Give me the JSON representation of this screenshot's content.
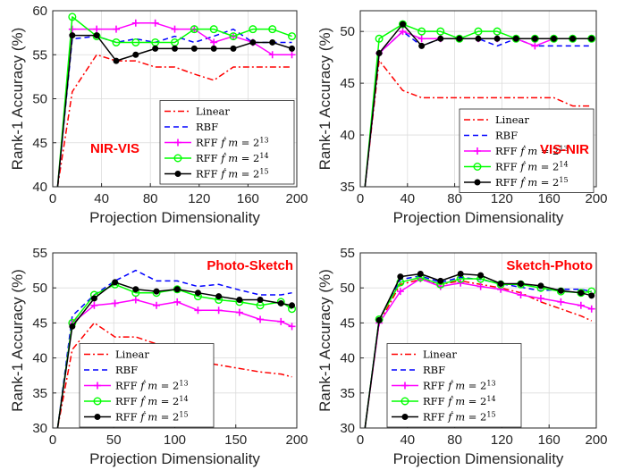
{
  "colors": {
    "title_red": "#ff0000"
  },
  "chart_data": [
    {
      "type": "line",
      "title": "NIR-VIS",
      "xlabel": "Projection Dimensionality",
      "ylabel": "Rank-1 Accuracy (%)",
      "xlim": [
        0,
        200
      ],
      "ylim": [
        40,
        60
      ],
      "xticks": [
        0,
        40,
        80,
        120,
        160,
        200
      ],
      "yticks": [
        40,
        45,
        50,
        55,
        60
      ],
      "grid": true,
      "legend_position": "bottom-right",
      "title_position": "bottom-left",
      "x": [
        4,
        16,
        36,
        52,
        68,
        84,
        100,
        116,
        132,
        148,
        164,
        180,
        196
      ],
      "series": [
        {
          "name": "Linear",
          "color": "#ff0000",
          "dash": "dashdot",
          "marker": "none",
          "values": [
            40,
            50.8,
            55,
            54.3,
            54.3,
            53.6,
            53.6,
            52.8,
            52.1,
            53.6,
            53.6,
            53.6,
            53.6
          ]
        },
        {
          "name": "RBF",
          "color": "#0000ff",
          "dash": "dash",
          "marker": "none",
          "values": [
            40,
            56.8,
            57.1,
            56.4,
            56.8,
            56.4,
            57.1,
            56.4,
            57.1,
            57.9,
            56.4,
            56.4,
            56.4
          ]
        },
        {
          "name": "RFF $\\dot{f}$ $m = 2^{13}$",
          "color": "#ff00ff",
          "dash": "solid",
          "marker": "plus",
          "values": [
            40,
            57.9,
            57.9,
            57.9,
            58.6,
            58.6,
            57.9,
            57.9,
            56.4,
            57.1,
            56.4,
            55,
            55
          ]
        },
        {
          "name": "RFF $\\dot{f}$ $m = 2^{14}$",
          "color": "#00ff00",
          "dash": "solid",
          "marker": "circle",
          "values": [
            40,
            59.3,
            57.1,
            56.4,
            56.4,
            56.4,
            56.4,
            57.9,
            57.9,
            57.1,
            57.9,
            57.9,
            57.1
          ]
        },
        {
          "name": "RFF $\\dot{f}$ $m = 2^{15}$",
          "color": "#000000",
          "dash": "solid",
          "marker": "dot",
          "values": [
            40,
            57.2,
            57.2,
            54.3,
            55,
            55.7,
            55.7,
            55.7,
            55.7,
            55.7,
            56.4,
            56.4,
            55.7
          ]
        }
      ]
    },
    {
      "type": "line",
      "title": "VIS-NIR",
      "xlabel": "Projection Dimensionality",
      "ylabel": "Rank-1 Accuracy (%)",
      "xlim": [
        0,
        200
      ],
      "ylim": [
        35,
        52
      ],
      "xticks": [
        0,
        40,
        80,
        120,
        160,
        200
      ],
      "yticks": [
        35,
        40,
        45,
        50
      ],
      "grid": true,
      "legend_position": "top-right",
      "title_position": "bottom-right",
      "x": [
        4,
        16,
        36,
        52,
        68,
        84,
        100,
        116,
        132,
        148,
        164,
        180,
        196
      ],
      "series": [
        {
          "name": "Linear",
          "color": "#ff0000",
          "dash": "dashdot",
          "marker": "none",
          "values": [
            35,
            47.2,
            44.3,
            43.6,
            43.6,
            43.6,
            43.6,
            43.6,
            43.6,
            43.6,
            43.6,
            42.8,
            42.8
          ]
        },
        {
          "name": "RBF",
          "color": "#0000ff",
          "dash": "dash",
          "marker": "none",
          "values": [
            35,
            47.9,
            50,
            48.6,
            49.3,
            49.3,
            49.3,
            48.6,
            49.3,
            48.6,
            48.6,
            48.6,
            48.6
          ]
        },
        {
          "name": "RFF $\\dot{f}$ $m = 2^{13}$",
          "color": "#ff00ff",
          "dash": "solid",
          "marker": "plus",
          "values": [
            35,
            47.9,
            50,
            49.3,
            49.3,
            49.3,
            49.3,
            49.3,
            49.3,
            48.6,
            49.3,
            49.3,
            49.3
          ]
        },
        {
          "name": "RFF $\\dot{f}$ $m = 2^{14}$",
          "color": "#00ff00",
          "dash": "solid",
          "marker": "circle",
          "values": [
            35,
            49.3,
            50.7,
            50,
            50,
            49.3,
            50,
            50,
            49.3,
            49.3,
            49.3,
            49.3,
            49.3
          ]
        },
        {
          "name": "RFF $\\dot{f}$ $m = 2^{15}$",
          "color": "#000000",
          "dash": "solid",
          "marker": "dot",
          "values": [
            35,
            47.9,
            50.7,
            48.6,
            49.3,
            49.3,
            49.3,
            49.3,
            49.3,
            49.3,
            49.3,
            49.3,
            49.3
          ]
        }
      ]
    },
    {
      "type": "line",
      "title": "Photo-Sketch",
      "xlabel": "Projection Dimensionality",
      "ylabel": "Rank-1 Accuracy (%)",
      "xlim": [
        0,
        200
      ],
      "ylim": [
        30,
        55
      ],
      "xticks": [
        0,
        50,
        100,
        150,
        200
      ],
      "yticks": [
        30,
        35,
        40,
        45,
        50,
        55
      ],
      "grid": true,
      "legend_position": "bottom-left",
      "title_position": "top-right",
      "x": [
        4,
        16,
        34,
        51,
        68,
        85,
        102,
        119,
        136,
        153,
        170,
        187,
        196
      ],
      "series": [
        {
          "name": "Linear",
          "color": "#ff0000",
          "dash": "dashdot",
          "marker": "none",
          "values": [
            30,
            41.2,
            45,
            43,
            43,
            42,
            40.5,
            39.5,
            39,
            38.5,
            38,
            37.7,
            37.3
          ]
        },
        {
          "name": "RBF",
          "color": "#0000ff",
          "dash": "dash",
          "marker": "none",
          "values": [
            30,
            46,
            49,
            51,
            52.5,
            51,
            51,
            50.2,
            50.5,
            49.7,
            49,
            49,
            49.3
          ]
        },
        {
          "name": "RFF $\\dot{f}$ $m = 2^{13}$",
          "color": "#ff00ff",
          "dash": "solid",
          "marker": "plus",
          "values": [
            30,
            45,
            47.5,
            47.8,
            48.3,
            47.5,
            48,
            46.8,
            46.8,
            46.5,
            45.5,
            45.2,
            44.5
          ]
        },
        {
          "name": "RFF $\\dot{f}$ $m = 2^{14}$",
          "color": "#00ff00",
          "dash": "solid",
          "marker": "circle",
          "values": [
            30,
            45,
            49,
            50.5,
            49.3,
            49.3,
            49.8,
            48.8,
            48.3,
            48,
            47.5,
            48,
            47
          ]
        },
        {
          "name": "RFF $\\dot{f}$ $m = 2^{15}$",
          "color": "#000000",
          "dash": "solid",
          "marker": "dot",
          "values": [
            30,
            44.5,
            48.5,
            50.8,
            49.8,
            49.5,
            49.8,
            49.3,
            48.8,
            48.3,
            48.3,
            47.8,
            47.5
          ]
        }
      ]
    },
    {
      "type": "line",
      "title": "Sketch-Photo",
      "xlabel": "Projection Dimensionality",
      "ylabel": "Rank-1 Accuracy (%)",
      "xlim": [
        0,
        200
      ],
      "ylim": [
        30,
        55
      ],
      "xticks": [
        0,
        40,
        80,
        120,
        160,
        200
      ],
      "yticks": [
        30,
        35,
        40,
        45,
        50,
        55
      ],
      "grid": true,
      "legend_position": "bottom-left",
      "title_position": "top-right",
      "x": [
        4,
        16,
        34,
        51,
        68,
        85,
        102,
        119,
        136,
        153,
        170,
        187,
        196
      ],
      "series": [
        {
          "name": "Linear",
          "color": "#ff0000",
          "dash": "dashdot",
          "marker": "none",
          "values": [
            30,
            45,
            50.5,
            51.2,
            50.5,
            51,
            50.5,
            50,
            49.3,
            48,
            47,
            46,
            45.3
          ]
        },
        {
          "name": "RBF",
          "color": "#0000ff",
          "dash": "dash",
          "marker": "none",
          "values": [
            30,
            45.5,
            51.2,
            51.7,
            50.8,
            51.5,
            51.2,
            50.6,
            50.1,
            49.6,
            49.8,
            49.8,
            49.5
          ]
        },
        {
          "name": "RFF $\\dot{f}$ $m = 2^{13}$",
          "color": "#ff00ff",
          "dash": "solid",
          "marker": "plus",
          "values": [
            30,
            45,
            49.5,
            51.3,
            50.2,
            50.7,
            50.2,
            49.8,
            49,
            48.5,
            48,
            47.5,
            47
          ]
        },
        {
          "name": "RFF $\\dot{f}$ $m = 2^{14}$",
          "color": "#00ff00",
          "dash": "solid",
          "marker": "circle",
          "values": [
            30,
            45.5,
            50.8,
            51.5,
            50.5,
            51.3,
            51.3,
            50.5,
            50.5,
            50,
            49.5,
            49.3,
            49.5
          ]
        },
        {
          "name": "RFF $\\dot{f}$ $m = 2^{15}$",
          "color": "#000000",
          "dash": "solid",
          "marker": "dot",
          "values": [
            30,
            45.4,
            51.6,
            52,
            51,
            52,
            51.8,
            50.6,
            50.6,
            50.3,
            49.6,
            49.3,
            48.9
          ]
        }
      ]
    }
  ]
}
